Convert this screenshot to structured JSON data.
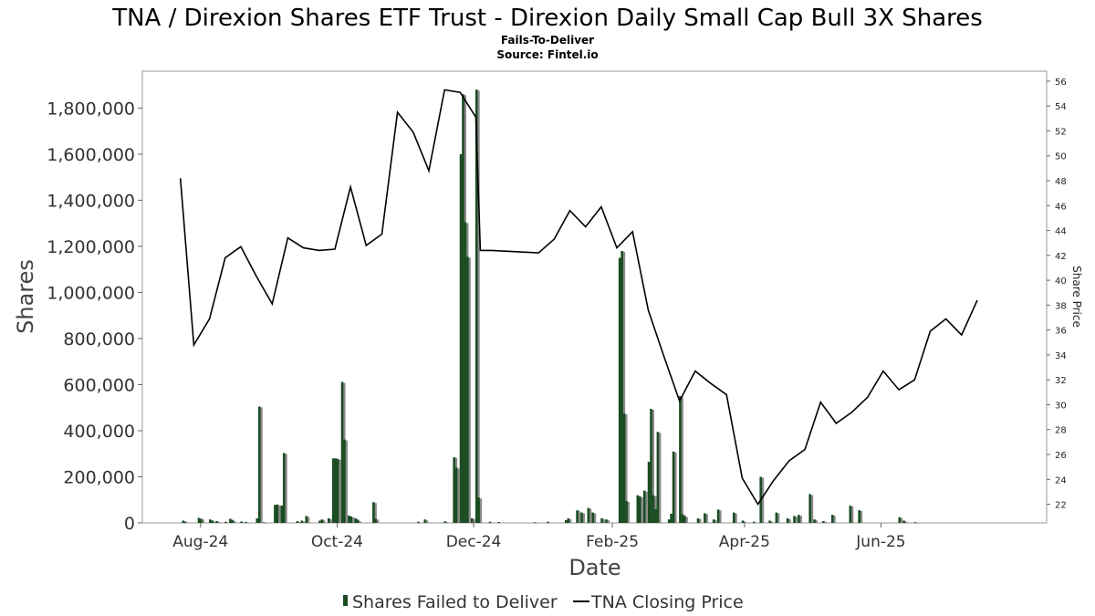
{
  "chart_data": {
    "type": "bar+line",
    "title": "TNA / Direxion Shares ETF Trust - Direxion Daily Small Cap Bull 3X Shares",
    "subtitle": "Fails-To-Deliver",
    "source": "Source: Fintel.io",
    "xlabel": "Date",
    "ylabel": "Shares",
    "y2label": "Share Price",
    "x_range": [
      "2024-07-06",
      "2025-08-14"
    ],
    "ylim": [
      0,
      1960000
    ],
    "y2lim": [
      20.5,
      56.8
    ],
    "left_ticks": [
      {
        "value": 0,
        "label": "0"
      },
      {
        "value": 200000,
        "label": "200,000"
      },
      {
        "value": 400000,
        "label": "400,000"
      },
      {
        "value": 600000,
        "label": "600,000"
      },
      {
        "value": 800000,
        "label": "800,000"
      },
      {
        "value": 1000000,
        "label": "1,000,000"
      },
      {
        "value": 1200000,
        "label": "1,200,000"
      },
      {
        "value": 1400000,
        "label": "1,400,000"
      },
      {
        "value": 1600000,
        "label": "1,600,000"
      },
      {
        "value": 1800000,
        "label": "1,800,000"
      }
    ],
    "right_ticks": [
      {
        "value": 22,
        "label": "22"
      },
      {
        "value": 24,
        "label": "24"
      },
      {
        "value": 26,
        "label": "26"
      },
      {
        "value": 28,
        "label": "28"
      },
      {
        "value": 30,
        "label": "30"
      },
      {
        "value": 32,
        "label": "32"
      },
      {
        "value": 34,
        "label": "34"
      },
      {
        "value": 36,
        "label": "36"
      },
      {
        "value": 38,
        "label": "38"
      },
      {
        "value": 40,
        "label": "40"
      },
      {
        "value": 42,
        "label": "42"
      },
      {
        "value": 44,
        "label": "44"
      },
      {
        "value": 46,
        "label": "46"
      },
      {
        "value": 48,
        "label": "48"
      },
      {
        "value": 50,
        "label": "50"
      },
      {
        "value": 52,
        "label": "52"
      },
      {
        "value": 54,
        "label": "54"
      },
      {
        "value": 56,
        "label": "56"
      }
    ],
    "x_ticks": [
      {
        "date": "2024-08-01",
        "label": "Aug-24"
      },
      {
        "date": "2024-10-01",
        "label": "Oct-24"
      },
      {
        "date": "2024-12-01",
        "label": "Dec-24"
      },
      {
        "date": "2025-02-01",
        "label": "Feb-25"
      },
      {
        "date": "2025-04-01",
        "label": "Apr-25"
      },
      {
        "date": "2025-06-01",
        "label": "Jun-25"
      }
    ],
    "series": [
      {
        "name": "Shares Failed to Deliver",
        "kind": "bar",
        "color": "#1b4d22",
        "shadow_color": "#8a8a8a",
        "points": [
          {
            "x": "2024-07-24",
            "y": 10000
          },
          {
            "x": "2024-07-25",
            "y": 5000
          },
          {
            "x": "2024-07-31",
            "y": 22000
          },
          {
            "x": "2024-08-01",
            "y": 18000
          },
          {
            "x": "2024-08-05",
            "y": 15000
          },
          {
            "x": "2024-08-06",
            "y": 10000
          },
          {
            "x": "2024-08-08",
            "y": 8000
          },
          {
            "x": "2024-08-12",
            "y": 5000
          },
          {
            "x": "2024-08-14",
            "y": 18000
          },
          {
            "x": "2024-08-15",
            "y": 12000
          },
          {
            "x": "2024-08-19",
            "y": 6000
          },
          {
            "x": "2024-08-21",
            "y": 4000
          },
          {
            "x": "2024-08-26",
            "y": 20000
          },
          {
            "x": "2024-08-27",
            "y": 505000
          },
          {
            "x": "2024-08-29",
            "y": 3000
          },
          {
            "x": "2024-09-03",
            "y": 78000
          },
          {
            "x": "2024-09-04",
            "y": 80000
          },
          {
            "x": "2024-09-06",
            "y": 75000
          },
          {
            "x": "2024-09-07",
            "y": 303000
          },
          {
            "x": "2024-09-13",
            "y": 8000
          },
          {
            "x": "2024-09-15",
            "y": 10000
          },
          {
            "x": "2024-09-17",
            "y": 30000
          },
          {
            "x": "2024-09-23",
            "y": 10000
          },
          {
            "x": "2024-09-24",
            "y": 15000
          },
          {
            "x": "2024-09-27",
            "y": 20000
          },
          {
            "x": "2024-09-29",
            "y": 280000
          },
          {
            "x": "2024-09-30",
            "y": 280000
          },
          {
            "x": "2024-10-01",
            "y": 278000
          },
          {
            "x": "2024-10-03",
            "y": 612000
          },
          {
            "x": "2024-10-04",
            "y": 362000
          },
          {
            "x": "2024-10-06",
            "y": 32000
          },
          {
            "x": "2024-10-07",
            "y": 28000
          },
          {
            "x": "2024-10-09",
            "y": 20000
          },
          {
            "x": "2024-10-10",
            "y": 12000
          },
          {
            "x": "2024-10-17",
            "y": 90000
          },
          {
            "x": "2024-10-18",
            "y": 18000
          },
          {
            "x": "2024-11-06",
            "y": 5000
          },
          {
            "x": "2024-11-09",
            "y": 15000
          },
          {
            "x": "2024-11-18",
            "y": 7000
          },
          {
            "x": "2024-11-22",
            "y": 285000
          },
          {
            "x": "2024-11-23",
            "y": 240000
          },
          {
            "x": "2024-11-25",
            "y": 1600000
          },
          {
            "x": "2024-11-26",
            "y": 1860000
          },
          {
            "x": "2024-11-27",
            "y": 1305000
          },
          {
            "x": "2024-11-28",
            "y": 1155000
          },
          {
            "x": "2024-11-30",
            "y": 20000
          },
          {
            "x": "2024-12-02",
            "y": 1880000
          },
          {
            "x": "2024-12-03",
            "y": 110000
          },
          {
            "x": "2024-12-08",
            "y": 5000
          },
          {
            "x": "2024-12-12",
            "y": 4000
          },
          {
            "x": "2024-12-28",
            "y": 3000
          },
          {
            "x": "2025-01-03",
            "y": 5000
          },
          {
            "x": "2025-01-11",
            "y": 12000
          },
          {
            "x": "2025-01-12",
            "y": 20000
          },
          {
            "x": "2025-01-16",
            "y": 55000
          },
          {
            "x": "2025-01-18",
            "y": 45000
          },
          {
            "x": "2025-01-21",
            "y": 65000
          },
          {
            "x": "2025-01-23",
            "y": 45000
          },
          {
            "x": "2025-01-27",
            "y": 20000
          },
          {
            "x": "2025-01-29",
            "y": 15000
          },
          {
            "x": "2025-02-04",
            "y": 1150000
          },
          {
            "x": "2025-02-05",
            "y": 1180000
          },
          {
            "x": "2025-02-06",
            "y": 475000
          },
          {
            "x": "2025-02-07",
            "y": 95000
          },
          {
            "x": "2025-02-12",
            "y": 120000
          },
          {
            "x": "2025-02-13",
            "y": 115000
          },
          {
            "x": "2025-02-15",
            "y": 140000
          },
          {
            "x": "2025-02-17",
            "y": 265000
          },
          {
            "x": "2025-02-18",
            "y": 495000
          },
          {
            "x": "2025-02-19",
            "y": 120000
          },
          {
            "x": "2025-02-20",
            "y": 60000
          },
          {
            "x": "2025-02-21",
            "y": 395000
          },
          {
            "x": "2025-02-26",
            "y": 15000
          },
          {
            "x": "2025-02-27",
            "y": 40000
          },
          {
            "x": "2025-02-28",
            "y": 310000
          },
          {
            "x": "2025-03-03",
            "y": 550000
          },
          {
            "x": "2025-03-04",
            "y": 38000
          },
          {
            "x": "2025-03-05",
            "y": 30000
          },
          {
            "x": "2025-03-11",
            "y": 20000
          },
          {
            "x": "2025-03-14",
            "y": 42000
          },
          {
            "x": "2025-03-18",
            "y": 15000
          },
          {
            "x": "2025-03-20",
            "y": 58000
          },
          {
            "x": "2025-03-27",
            "y": 45000
          },
          {
            "x": "2025-03-31",
            "y": 10000
          },
          {
            "x": "2025-04-05",
            "y": 5000
          },
          {
            "x": "2025-04-08",
            "y": 200000
          },
          {
            "x": "2025-04-12",
            "y": 10000
          },
          {
            "x": "2025-04-15",
            "y": 45000
          },
          {
            "x": "2025-04-20",
            "y": 20000
          },
          {
            "x": "2025-04-23",
            "y": 30000
          },
          {
            "x": "2025-04-25",
            "y": 35000
          },
          {
            "x": "2025-04-30",
            "y": 125000
          },
          {
            "x": "2025-05-02",
            "y": 15000
          },
          {
            "x": "2025-05-06",
            "y": 8000
          },
          {
            "x": "2025-05-10",
            "y": 35000
          },
          {
            "x": "2025-05-18",
            "y": 75000
          },
          {
            "x": "2025-05-22",
            "y": 55000
          },
          {
            "x": "2025-06-09",
            "y": 25000
          },
          {
            "x": "2025-06-11",
            "y": 10000
          },
          {
            "x": "2025-06-16",
            "y": 3000
          }
        ]
      },
      {
        "name": "TNA Closing Price",
        "kind": "line",
        "color": "#000000",
        "points": [
          {
            "x": "2024-07-23",
            "y": 48.2
          },
          {
            "x": "2024-07-29",
            "y": 34.8
          },
          {
            "x": "2024-08-05",
            "y": 36.9
          },
          {
            "x": "2024-08-12",
            "y": 41.8
          },
          {
            "x": "2024-08-19",
            "y": 42.7
          },
          {
            "x": "2024-08-26",
            "y": 40.3
          },
          {
            "x": "2024-09-02",
            "y": 38.1
          },
          {
            "x": "2024-09-09",
            "y": 43.4
          },
          {
            "x": "2024-09-16",
            "y": 42.6
          },
          {
            "x": "2024-09-23",
            "y": 42.4
          },
          {
            "x": "2024-09-30",
            "y": 42.5
          },
          {
            "x": "2024-10-07",
            "y": 47.5
          },
          {
            "x": "2024-10-14",
            "y": 42.8
          },
          {
            "x": "2024-10-21",
            "y": 43.7
          },
          {
            "x": "2024-10-28",
            "y": 53.5
          },
          {
            "x": "2024-11-04",
            "y": 51.9
          },
          {
            "x": "2024-11-11",
            "y": 48.8
          },
          {
            "x": "2024-11-18",
            "y": 55.3
          },
          {
            "x": "2024-11-25",
            "y": 55.1
          },
          {
            "x": "2024-12-02",
            "y": 53.1
          },
          {
            "x": "2024-12-04",
            "y": 42.4
          },
          {
            "x": "2024-12-09",
            "y": 42.4
          },
          {
            "x": "2024-12-30",
            "y": 42.2
          },
          {
            "x": "2025-01-06",
            "y": 43.3
          },
          {
            "x": "2025-01-13",
            "y": 45.6
          },
          {
            "x": "2025-01-20",
            "y": 44.3
          },
          {
            "x": "2025-01-27",
            "y": 45.9
          },
          {
            "x": "2025-02-03",
            "y": 42.6
          },
          {
            "x": "2025-02-10",
            "y": 43.9
          },
          {
            "x": "2025-02-17",
            "y": 37.6
          },
          {
            "x": "2025-02-24",
            "y": 33.9
          },
          {
            "x": "2025-03-03",
            "y": 30.3
          },
          {
            "x": "2025-03-10",
            "y": 32.7
          },
          {
            "x": "2025-03-17",
            "y": 31.7
          },
          {
            "x": "2025-03-24",
            "y": 30.8
          },
          {
            "x": "2025-03-31",
            "y": 24.1
          },
          {
            "x": "2025-04-07",
            "y": 22.0
          },
          {
            "x": "2025-04-14",
            "y": 23.9
          },
          {
            "x": "2025-04-21",
            "y": 25.5
          },
          {
            "x": "2025-04-28",
            "y": 26.4
          },
          {
            "x": "2025-05-05",
            "y": 30.2
          },
          {
            "x": "2025-05-12",
            "y": 28.5
          },
          {
            "x": "2025-05-19",
            "y": 29.4
          },
          {
            "x": "2025-05-26",
            "y": 30.6
          },
          {
            "x": "2025-06-02",
            "y": 32.7
          },
          {
            "x": "2025-06-09",
            "y": 31.2
          },
          {
            "x": "2025-06-16",
            "y": 32.0
          },
          {
            "x": "2025-06-23",
            "y": 35.9
          },
          {
            "x": "2025-06-30",
            "y": 36.9
          },
          {
            "x": "2025-07-07",
            "y": 35.6
          },
          {
            "x": "2025-07-14",
            "y": 38.4
          }
        ]
      }
    ],
    "legend": {
      "placement": "bottom-center",
      "items": [
        {
          "label": "Shares Failed to Deliver",
          "color": "#1b4d22"
        },
        {
          "label": "TNA Closing Price",
          "color": "#000000"
        }
      ]
    },
    "grid": false
  }
}
